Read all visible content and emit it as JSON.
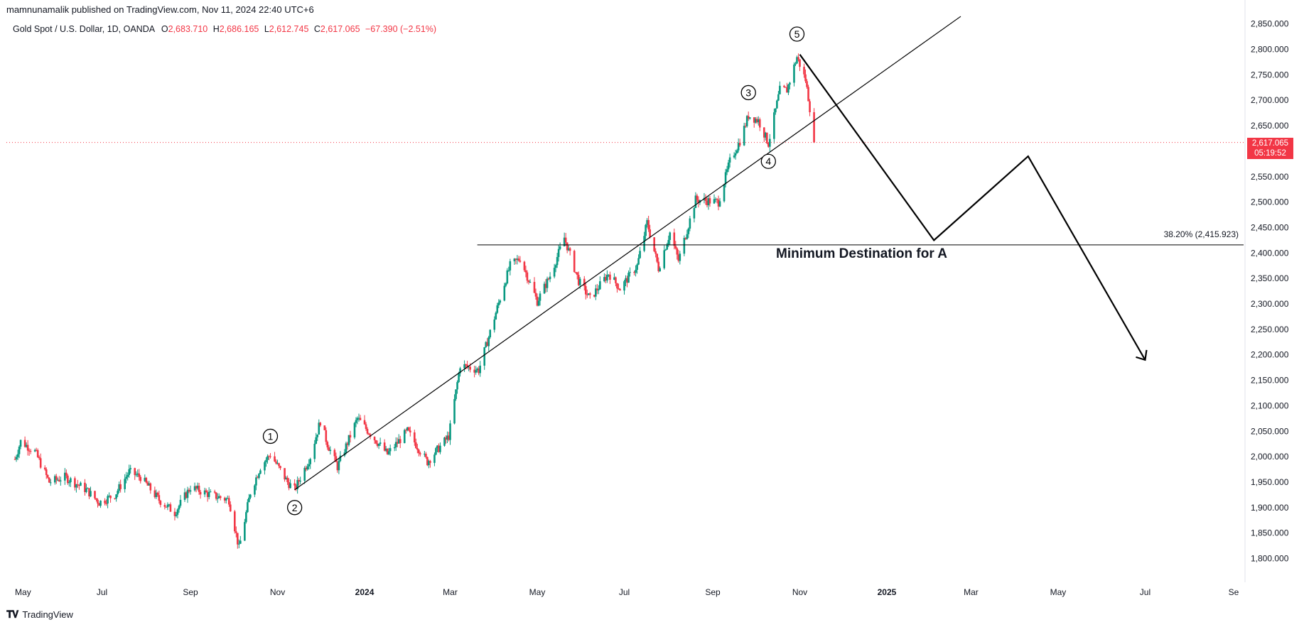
{
  "header": {
    "publisher_line": "mamnunamalik published on TradingView.com, Nov 11, 2024 22:40 UTC+6"
  },
  "legend": {
    "symbol": "Gold Spot / U.S. Dollar, 1D, OANDA",
    "o_label": "O",
    "o_value": "2,683.710",
    "h_label": "H",
    "h_value": "2,686.165",
    "l_label": "L",
    "l_value": "2,612.745",
    "c_label": "C",
    "c_value": "2,617.065",
    "change": "−67.390 (−2.51%)"
  },
  "price_tag": {
    "price": "2,617.065",
    "countdown": "05:19:52"
  },
  "annotations": {
    "fib_label": "38.20% (2,415.923)",
    "destination_text": "Minimum Destination for A",
    "waves": [
      "1",
      "2",
      "3",
      "4",
      "5"
    ]
  },
  "footer": {
    "brand": "TradingView",
    "logo": "tradingview-logo-icon"
  },
  "colors": {
    "up": "#089981",
    "down": "#f23645",
    "line": "#000000"
  },
  "chart_data": {
    "type": "candlestick",
    "title": "",
    "xlabel": "",
    "ylabel": "",
    "ylim": [
      1760,
      2860
    ],
    "y_ticks": [
      "1,800.000",
      "1,850.000",
      "1,900.000",
      "1,950.000",
      "2,000.000",
      "2,050.000",
      "2,100.000",
      "2,150.000",
      "2,200.000",
      "2,250.000",
      "2,300.000",
      "2,350.000",
      "2,400.000",
      "2,450.000",
      "2,500.000",
      "2,550.000",
      "2,600.000",
      "2,650.000",
      "2,700.000",
      "2,750.000",
      "2,800.000",
      "2,850.000"
    ],
    "x_ticks": [
      "May",
      "Jul",
      "Sep",
      "Nov",
      "2024",
      "Mar",
      "May",
      "Jul",
      "Sep",
      "Nov",
      "2025",
      "Mar",
      "May",
      "Jul",
      "Se"
    ],
    "close_path": [
      {
        "d": "2023-05-01",
        "c": 1995
      },
      {
        "d": "2023-05-05",
        "c": 2030
      },
      {
        "d": "2023-05-15",
        "c": 2010
      },
      {
        "d": "2023-05-25",
        "c": 1950
      },
      {
        "d": "2023-06-05",
        "c": 1960
      },
      {
        "d": "2023-06-20",
        "c": 1935
      },
      {
        "d": "2023-06-29",
        "c": 1910
      },
      {
        "d": "2023-07-10",
        "c": 1925
      },
      {
        "d": "2023-07-20",
        "c": 1970
      },
      {
        "d": "2023-07-28",
        "c": 1960
      },
      {
        "d": "2023-08-10",
        "c": 1915
      },
      {
        "d": "2023-08-21",
        "c": 1890
      },
      {
        "d": "2023-09-01",
        "c": 1940
      },
      {
        "d": "2023-09-15",
        "c": 1925
      },
      {
        "d": "2023-09-28",
        "c": 1915
      },
      {
        "d": "2023-10-05",
        "c": 1820
      },
      {
        "d": "2023-10-13",
        "c": 1930
      },
      {
        "d": "2023-10-20",
        "c": 1980
      },
      {
        "d": "2023-10-27",
        "c": 2005
      },
      {
        "d": "2023-11-08",
        "c": 1950
      },
      {
        "d": "2023-11-13",
        "c": 1935
      },
      {
        "d": "2023-11-24",
        "c": 2000
      },
      {
        "d": "2023-12-01",
        "c": 2070
      },
      {
        "d": "2023-12-06",
        "c": 2025
      },
      {
        "d": "2023-12-13",
        "c": 1980
      },
      {
        "d": "2023-12-27",
        "c": 2075
      },
      {
        "d": "2024-01-05",
        "c": 2045
      },
      {
        "d": "2024-01-17",
        "c": 2005
      },
      {
        "d": "2024-01-31",
        "c": 2050
      },
      {
        "d": "2024-02-14",
        "c": 1990
      },
      {
        "d": "2024-02-29",
        "c": 2040
      },
      {
        "d": "2024-03-08",
        "c": 2180
      },
      {
        "d": "2024-03-21",
        "c": 2170
      },
      {
        "d": "2024-03-28",
        "c": 2235
      },
      {
        "d": "2024-04-08",
        "c": 2340
      },
      {
        "d": "2024-04-12",
        "c": 2375
      },
      {
        "d": "2024-04-19",
        "c": 2390
      },
      {
        "d": "2024-05-01",
        "c": 2305
      },
      {
        "d": "2024-05-10",
        "c": 2355
      },
      {
        "d": "2024-05-20",
        "c": 2430
      },
      {
        "d": "2024-05-30",
        "c": 2345
      },
      {
        "d": "2024-06-07",
        "c": 2310
      },
      {
        "d": "2024-06-20",
        "c": 2360
      },
      {
        "d": "2024-06-28",
        "c": 2330
      },
      {
        "d": "2024-07-10",
        "c": 2375
      },
      {
        "d": "2024-07-17",
        "c": 2460
      },
      {
        "d": "2024-07-25",
        "c": 2370
      },
      {
        "d": "2024-08-02",
        "c": 2440
      },
      {
        "d": "2024-08-08",
        "c": 2385
      },
      {
        "d": "2024-08-20",
        "c": 2505
      },
      {
        "d": "2024-09-05",
        "c": 2500
      },
      {
        "d": "2024-09-13",
        "c": 2580
      },
      {
        "d": "2024-09-20",
        "c": 2620
      },
      {
        "d": "2024-09-26",
        "c": 2670
      },
      {
        "d": "2024-10-03",
        "c": 2660
      },
      {
        "d": "2024-10-10",
        "c": 2615
      },
      {
        "d": "2024-10-18",
        "c": 2720
      },
      {
        "d": "2024-10-23",
        "c": 2720
      },
      {
        "d": "2024-10-30",
        "c": 2785
      },
      {
        "d": "2024-11-05",
        "c": 2740
      },
      {
        "d": "2024-11-07",
        "c": 2705
      },
      {
        "d": "2024-11-08",
        "c": 2685
      },
      {
        "d": "2024-11-11",
        "c": 2617.065
      }
    ],
    "fib_level": {
      "label": "38.20%",
      "price": 2415.923
    },
    "trendline": {
      "from": {
        "d": "2023-11-13",
        "p": 1935
      },
      "to": {
        "d": "2024-11-11",
        "p": 2660
      }
    },
    "projected_path": [
      {
        "d": "2024-11-01",
        "p": 2790
      },
      {
        "d": "2025-02-03",
        "p": 2425
      },
      {
        "d": "2025-04-10",
        "p": 2590
      },
      {
        "d": "2025-07-01",
        "p": 2190
      }
    ],
    "wave_labels": [
      {
        "label": "1",
        "d": "2023-10-27",
        "p": 2040
      },
      {
        "label": "2",
        "d": "2023-11-13",
        "p": 1900
      },
      {
        "label": "3",
        "d": "2024-09-26",
        "p": 2715
      },
      {
        "label": "4",
        "d": "2024-10-10",
        "p": 2580
      },
      {
        "label": "5",
        "d": "2024-10-30",
        "p": 2830
      }
    ],
    "grid": false,
    "legend_position": "top-left"
  }
}
